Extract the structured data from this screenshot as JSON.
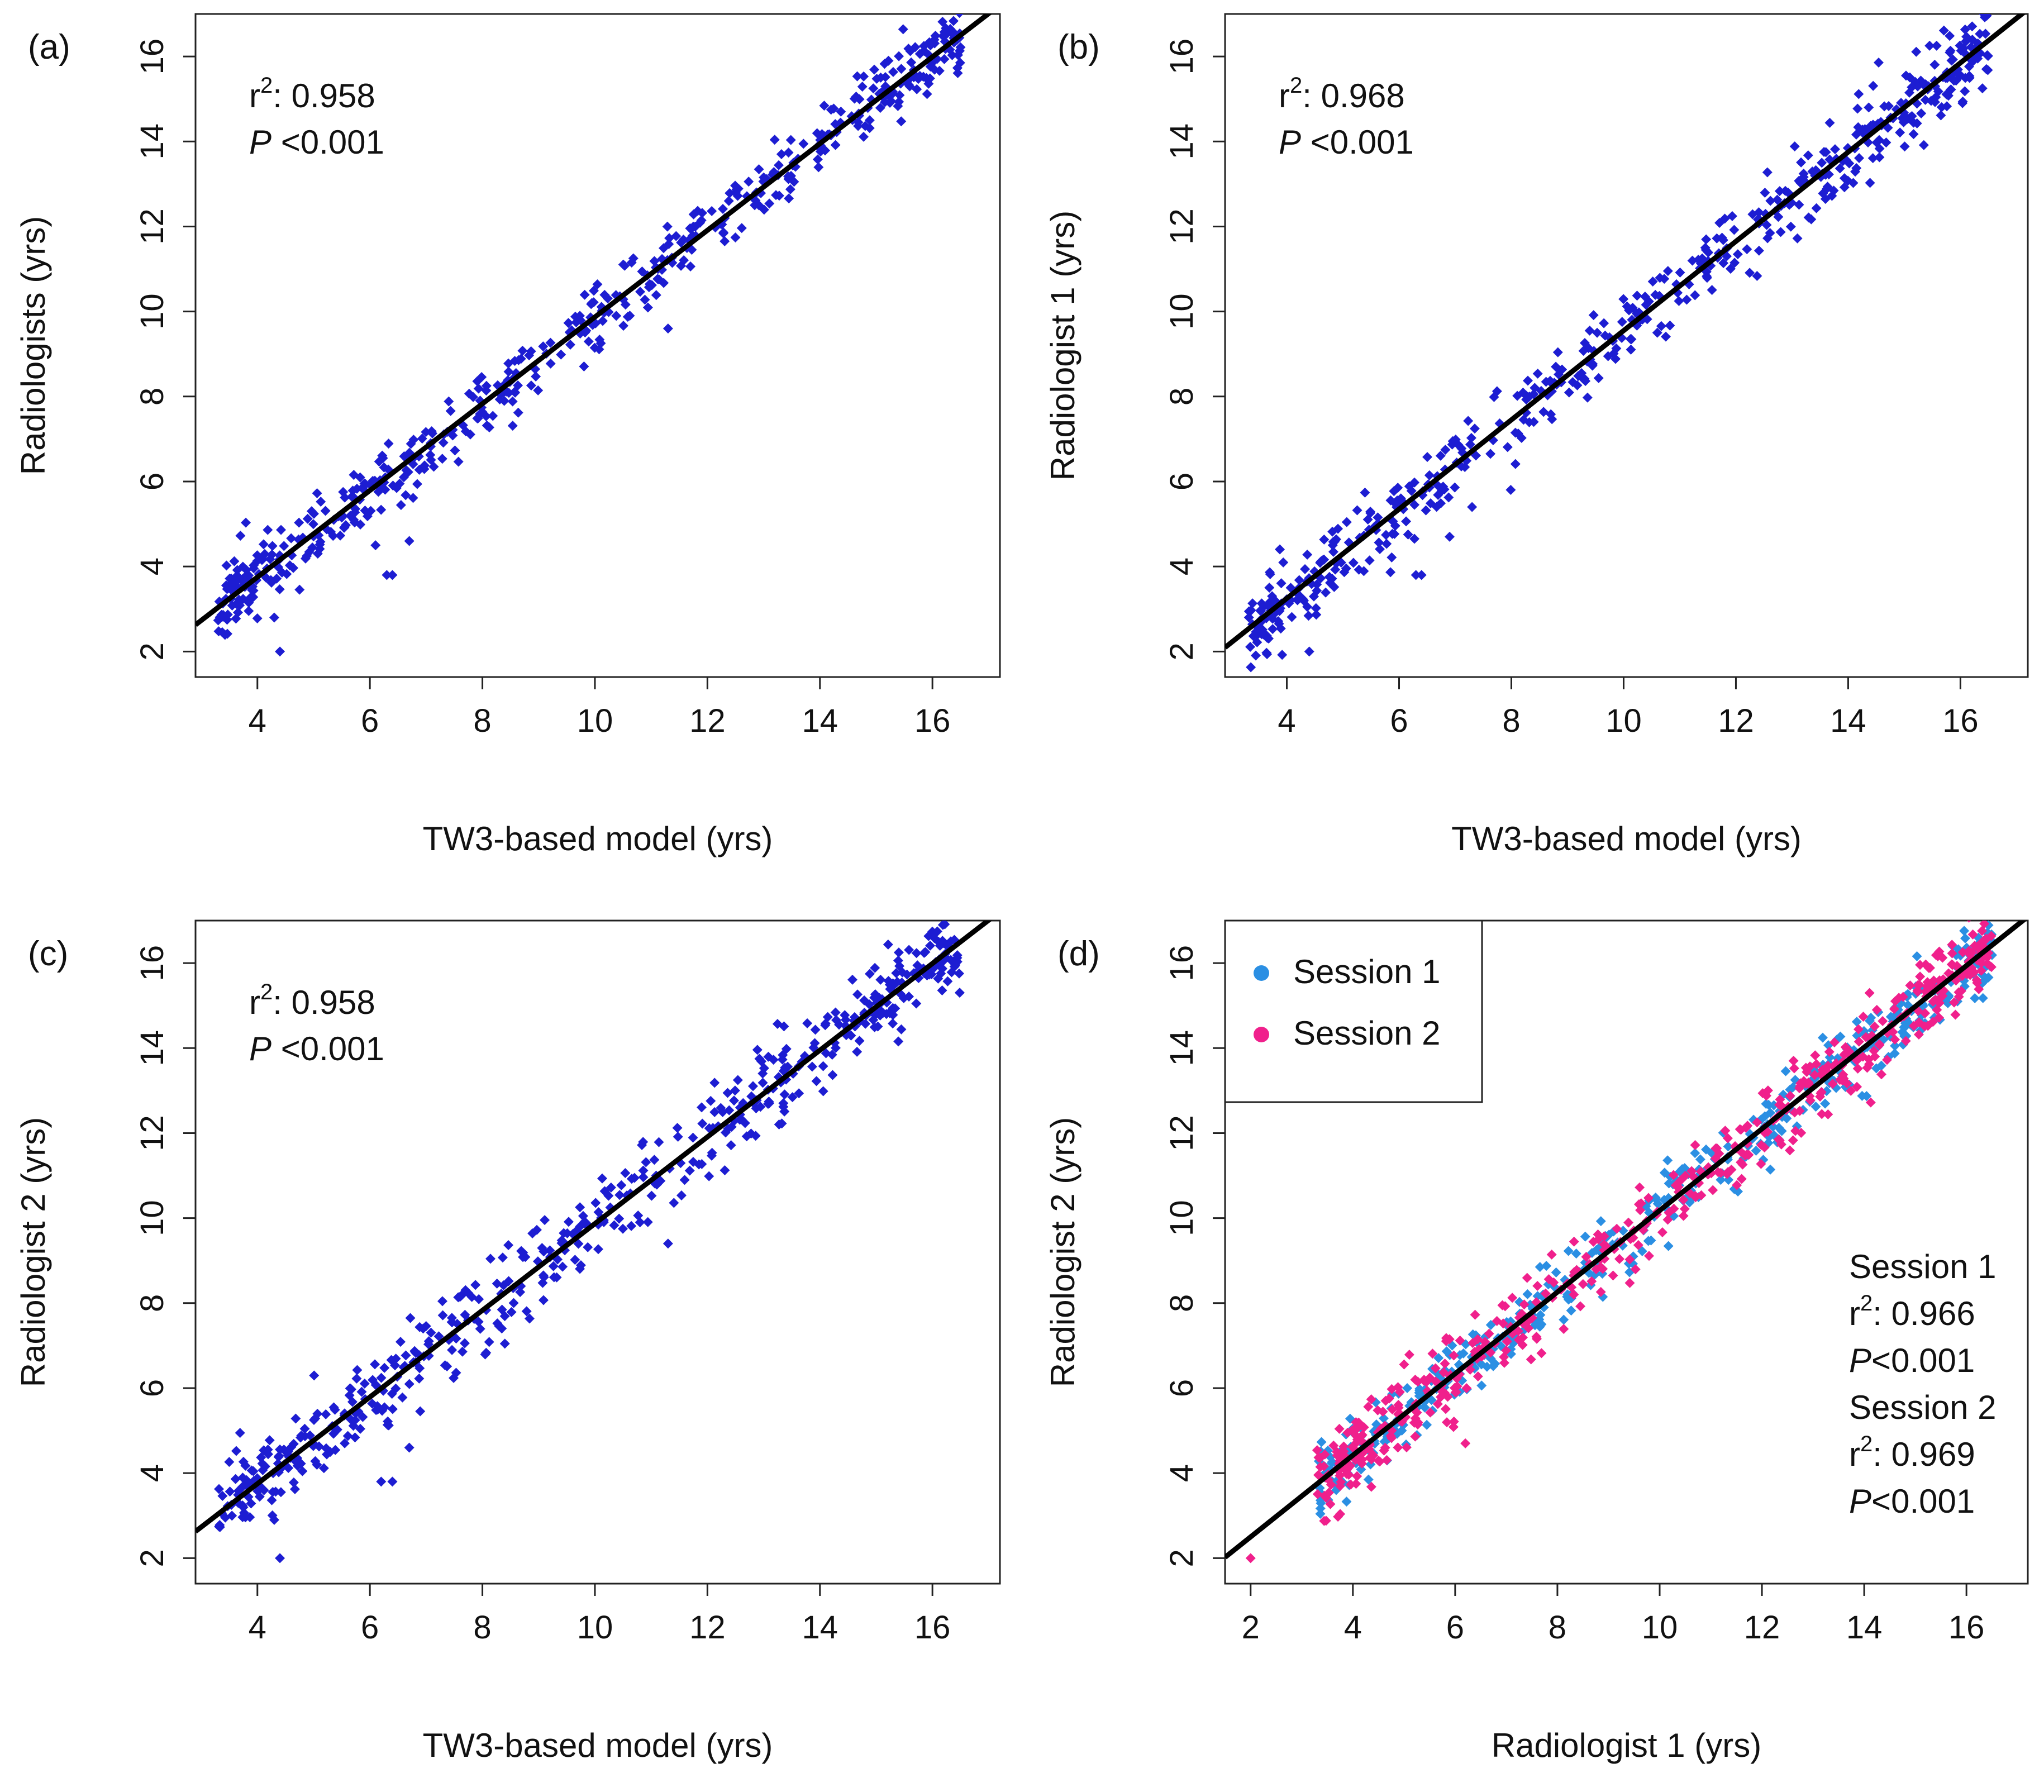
{
  "chart_data": [
    {
      "type": "scatter",
      "panel_label": "(a)",
      "xlabel": "TW3-based model (yrs)",
      "ylabel": "Radiologists (yrs)",
      "xlim": [
        2.9,
        17.2
      ],
      "ylim": [
        1.4,
        17.0
      ],
      "xticks": [
        4,
        6,
        8,
        10,
        12,
        14,
        16
      ],
      "yticks": [
        2,
        4,
        6,
        8,
        10,
        12,
        14,
        16
      ],
      "grid": false,
      "annotation": {
        "r2_prefix": "r",
        "r2_sup": "2",
        "r2_value": ": 0.958",
        "p_italic": "P",
        "p_value": " <0.001"
      },
      "fit_line": {
        "slope": 1.02,
        "intercept": -0.33
      },
      "point_color": "#1d1dd2",
      "line_color": "#000000",
      "series": [
        {
          "n_points": 540,
          "seed": 11,
          "scatter_sd": 0.42
        }
      ],
      "outliers": [
        [
          4.4,
          2.0
        ],
        [
          6.3,
          3.8
        ],
        [
          6.4,
          3.8
        ],
        [
          6.7,
          4.6
        ],
        [
          4.3,
          2.8
        ],
        [
          11.3,
          9.6
        ],
        [
          6.1,
          4.5
        ]
      ]
    },
    {
      "type": "scatter",
      "panel_label": "(b)",
      "xlabel": "TW3-based model (yrs)",
      "ylabel": "Radiologist 1 (yrs)",
      "xlim": [
        2.9,
        17.2
      ],
      "ylim": [
        1.4,
        17.0
      ],
      "xticks": [
        4,
        6,
        8,
        10,
        12,
        14,
        16
      ],
      "yticks": [
        2,
        4,
        6,
        8,
        10,
        12,
        14,
        16
      ],
      "grid": false,
      "annotation": {
        "r2_prefix": "r",
        "r2_sup": "2",
        "r2_value": ": 0.968",
        "p_italic": "P",
        "p_value": " <0.001"
      },
      "fit_line": {
        "slope": 1.05,
        "intercept": -0.95
      },
      "point_color": "#1d1dd2",
      "line_color": "#000000",
      "series": [
        {
          "n_points": 540,
          "seed": 23,
          "scatter_sd": 0.45
        }
      ],
      "outliers": [
        [
          4.4,
          2.0
        ],
        [
          6.3,
          3.8
        ],
        [
          6.4,
          3.8
        ],
        [
          6.9,
          4.7
        ],
        [
          7.3,
          5.4
        ],
        [
          10.6,
          9.5
        ]
      ]
    },
    {
      "type": "scatter",
      "panel_label": "(c)",
      "xlabel": "TW3-based model (yrs)",
      "ylabel": "Radiologist 2 (yrs)",
      "xlim": [
        2.9,
        17.2
      ],
      "ylim": [
        1.4,
        17.0
      ],
      "xticks": [
        4,
        6,
        8,
        10,
        12,
        14,
        16
      ],
      "yticks": [
        2,
        4,
        6,
        8,
        10,
        12,
        14,
        16
      ],
      "grid": false,
      "annotation": {
        "r2_prefix": "r",
        "r2_sup": "2",
        "r2_value": ": 0.958",
        "p_italic": "P",
        "p_value": " <0.001"
      },
      "fit_line": {
        "slope": 1.02,
        "intercept": -0.33
      },
      "point_color": "#1d1dd2",
      "line_color": "#000000",
      "series": [
        {
          "n_points": 540,
          "seed": 37,
          "scatter_sd": 0.5
        }
      ],
      "outliers": [
        [
          4.4,
          2.0
        ],
        [
          6.2,
          3.8
        ],
        [
          6.4,
          3.8
        ],
        [
          6.7,
          4.6
        ],
        [
          11.3,
          9.4
        ],
        [
          4.3,
          2.9
        ]
      ]
    },
    {
      "type": "scatter",
      "panel_label": "(d)",
      "xlabel": "Radiologist 1 (yrs)",
      "ylabel": "Radiologist 2 (yrs)",
      "xlim": [
        1.5,
        17.2
      ],
      "ylim": [
        1.4,
        17.0
      ],
      "xticks": [
        2,
        4,
        6,
        8,
        10,
        12,
        14,
        16
      ],
      "yticks": [
        2,
        4,
        6,
        8,
        10,
        12,
        14,
        16
      ],
      "grid": false,
      "legend": {
        "placement": "top-left",
        "entries": [
          {
            "name": "Session 1",
            "color": "#2b8fe3"
          },
          {
            "name": "Session 2",
            "color": "#f0208c"
          }
        ]
      },
      "annotation_block": [
        {
          "kind": "title",
          "text": "Session 1"
        },
        {
          "kind": "r2",
          "prefix": "r",
          "sup": "2",
          "value": ": 0.966"
        },
        {
          "kind": "p",
          "italic": "P",
          "value": "<0.001"
        },
        {
          "kind": "title",
          "text": "Session 2"
        },
        {
          "kind": "r2",
          "prefix": "r",
          "sup": "2",
          "value": ": 0.969"
        },
        {
          "kind": "p",
          "italic": "P",
          "value": "<0.001"
        }
      ],
      "fit_line": {
        "slope": 0.96,
        "intercept": 0.58
      },
      "line_color": "#000000",
      "series": [
        {
          "name": "Session 1",
          "color": "#2b8fe3",
          "n_points": 500,
          "seed": 53,
          "scatter_sd": 0.42
        },
        {
          "name": "Session 2",
          "color": "#f0208c",
          "n_points": 520,
          "seed": 71,
          "scatter_sd": 0.45
        }
      ],
      "outliers": [
        [
          2.0,
          2.0
        ],
        [
          6.2,
          4.7
        ],
        [
          16.2,
          15.6
        ]
      ]
    }
  ]
}
